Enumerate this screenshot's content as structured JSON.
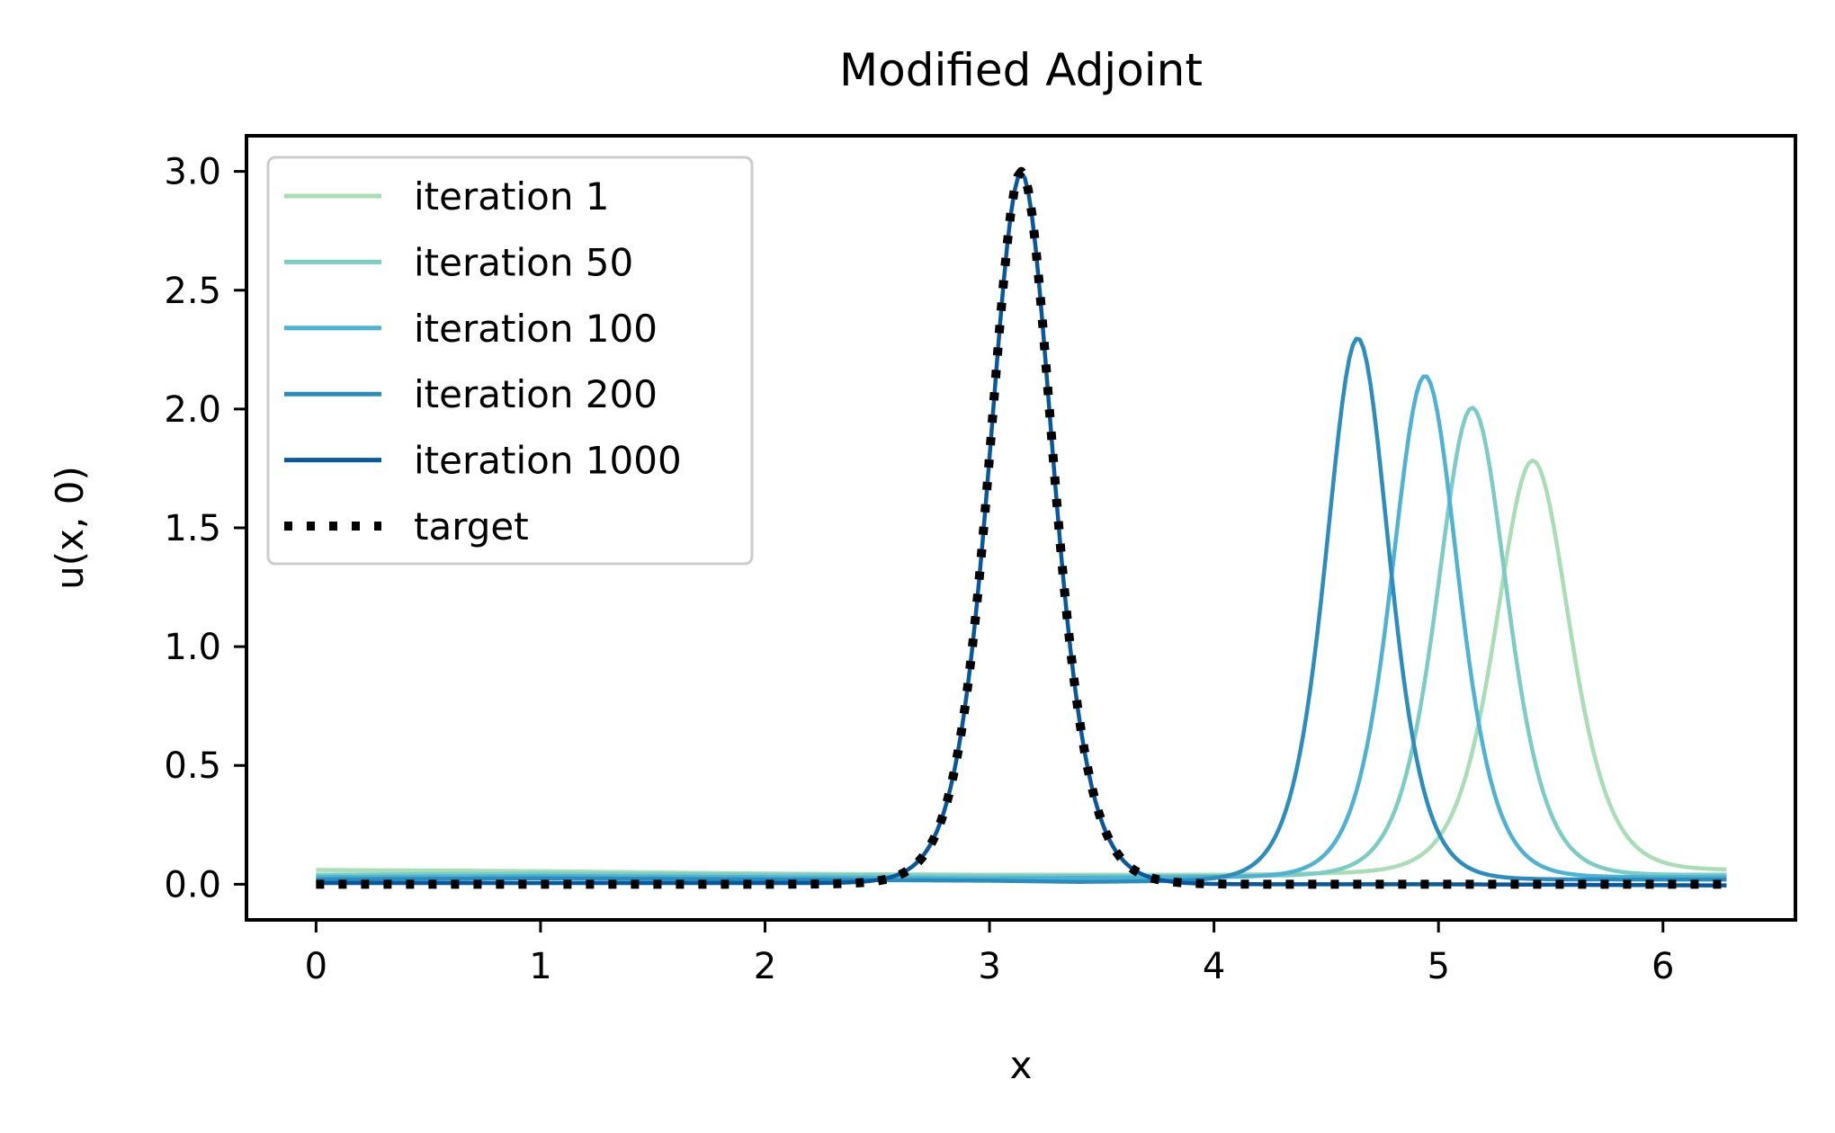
{
  "chart_data": {
    "type": "line",
    "title": "Modified Adjoint",
    "xlabel": "x",
    "ylabel": "u(x, 0)",
    "xlim": [
      -0.31,
      6.59
    ],
    "ylim": [
      -0.15,
      3.15
    ],
    "xticks": [
      0,
      1,
      2,
      3,
      4,
      5,
      6
    ],
    "xtick_labels": [
      "0",
      "1",
      "2",
      "3",
      "4",
      "5",
      "6"
    ],
    "yticks": [
      0,
      0.5,
      1.0,
      1.5,
      2.0,
      2.5,
      3.0
    ],
    "ytick_labels": [
      "0.0",
      "0.5",
      "1.0",
      "1.5",
      "2.0",
      "2.5",
      "3.0"
    ],
    "grid": false,
    "legend_position": "top-left",
    "x_range": [
      0,
      6.2832
    ],
    "series": [
      {
        "name": "iteration 1",
        "color": "#a8ddb5",
        "style": "solid",
        "peak_center": 5.42,
        "peak_height": 1.73,
        "peak_width": 0.22,
        "baseline": [
          [
            0,
            0.06
          ],
          [
            1,
            0.055
          ],
          [
            2,
            0.045
          ],
          [
            3,
            0.04
          ],
          [
            4,
            0.04
          ],
          [
            5,
            0.05
          ],
          [
            6.2832,
            0.06
          ]
        ]
      },
      {
        "name": "iteration 50",
        "color": "#7bccc4",
        "style": "solid",
        "peak_center": 5.15,
        "peak_height": 1.97,
        "peak_width": 0.21,
        "baseline": [
          [
            0,
            0.04
          ],
          [
            1,
            0.045
          ],
          [
            2,
            0.04
          ],
          [
            3,
            0.035
          ],
          [
            4,
            0.035
          ],
          [
            5,
            0.035
          ],
          [
            6.2832,
            0.04
          ]
        ]
      },
      {
        "name": "iteration 100",
        "color": "#4eb3d3",
        "style": "solid",
        "peak_center": 4.94,
        "peak_height": 2.11,
        "peak_width": 0.2,
        "baseline": [
          [
            0,
            0.03
          ],
          [
            1,
            0.035
          ],
          [
            2,
            0.03
          ],
          [
            3,
            0.025
          ],
          [
            4,
            0.03
          ],
          [
            5,
            0.03
          ],
          [
            6.2832,
            0.03
          ]
        ]
      },
      {
        "name": "iteration 200",
        "color": "#2b8cbe",
        "style": "solid",
        "peak_center": 4.64,
        "peak_height": 2.28,
        "peak_width": 0.19,
        "baseline": [
          [
            0,
            0.02
          ],
          [
            1,
            0.025
          ],
          [
            2,
            0.02
          ],
          [
            3,
            0.015
          ],
          [
            3.4,
            0.01
          ],
          [
            4,
            0.015
          ],
          [
            5,
            0.02
          ],
          [
            6.2832,
            0.02
          ]
        ]
      },
      {
        "name": "iteration 1000",
        "color": "#08589e",
        "style": "solid",
        "peak_center": 3.1416,
        "peak_height": 2.99,
        "peak_width": 0.19,
        "baseline": [
          [
            0,
            0.005
          ],
          [
            2,
            0.005
          ],
          [
            4,
            0.0
          ],
          [
            5,
            0.0
          ],
          [
            6.2832,
            -0.005
          ]
        ]
      },
      {
        "name": "target",
        "color": "#000000",
        "style": "dotted",
        "peak_center": 3.1416,
        "peak_height": 3.0,
        "peak_width": 0.19,
        "baseline": [
          [
            0,
            0.0
          ],
          [
            6.2832,
            0.0
          ]
        ]
      }
    ]
  }
}
